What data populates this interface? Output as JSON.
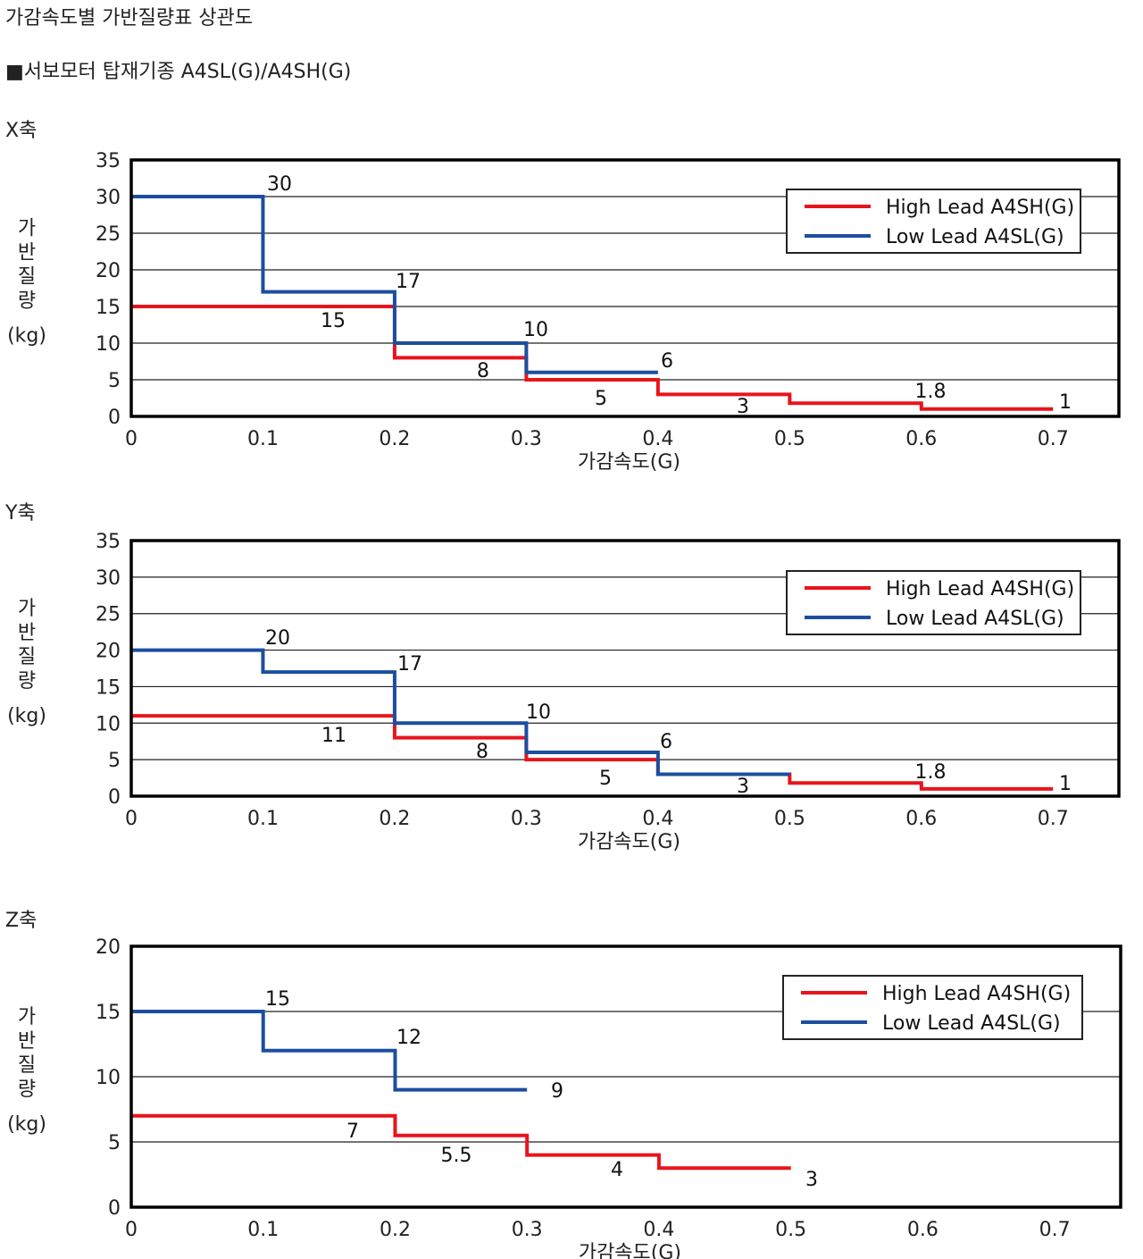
{
  "page": {
    "title": "가감속도별 가반질량표 상관도",
    "model_line": "■서보모터 탑재기종 A4SL(G)/A4SH(G)"
  },
  "colors": {
    "high": "#e8141c",
    "low": "#1c4ea0",
    "grid": "#222222",
    "frame": "#000000"
  },
  "chart_data": [
    {
      "type": "line",
      "panel_title": "X축",
      "xlabel": "가감속도(G)",
      "ylabel": "가반질량(kg)",
      "xlim": [
        0,
        0.75
      ],
      "ylim": [
        0,
        35
      ],
      "xticks": [
        0,
        0.1,
        0.2,
        0.3,
        0.4,
        0.5,
        0.6,
        0.7
      ],
      "yticks": [
        0,
        5,
        10,
        15,
        20,
        25,
        30,
        35
      ],
      "grid": true,
      "legend": "top-right",
      "series": [
        {
          "name": "High Lead A4SH(G)",
          "color": "#e8141c",
          "steps": [
            {
              "x": [
                0,
                0.2
              ],
              "y": 15,
              "label": "15"
            },
            {
              "x": [
                0.2,
                0.3
              ],
              "y": 8,
              "label": "8"
            },
            {
              "x": [
                0.3,
                0.4
              ],
              "y": 5,
              "label": "5"
            },
            {
              "x": [
                0.4,
                0.5
              ],
              "y": 3,
              "label": "3"
            },
            {
              "x": [
                0.5,
                0.6
              ],
              "y": 1.8,
              "label": "1.8"
            },
            {
              "x": [
                0.6,
                0.7
              ],
              "y": 1,
              "label": "1"
            }
          ]
        },
        {
          "name": "Low Lead A4SL(G)",
          "color": "#1c4ea0",
          "steps": [
            {
              "x": [
                0,
                0.1
              ],
              "y": 30,
              "label": "30"
            },
            {
              "x": [
                0.1,
                0.2
              ],
              "y": 17,
              "label": "17"
            },
            {
              "x": [
                0.2,
                0.3
              ],
              "y": 10,
              "label": "10"
            },
            {
              "x": [
                0.3,
                0.4
              ],
              "y": 6,
              "label": "6"
            }
          ]
        }
      ]
    },
    {
      "type": "line",
      "panel_title": "Y축",
      "xlabel": "가감속도(G)",
      "ylabel": "가반질량(kg)",
      "xlim": [
        0,
        0.75
      ],
      "ylim": [
        0,
        35
      ],
      "xticks": [
        0,
        0.1,
        0.2,
        0.3,
        0.4,
        0.5,
        0.6,
        0.7
      ],
      "yticks": [
        0,
        5,
        10,
        15,
        20,
        25,
        30,
        35
      ],
      "grid": true,
      "legend": "top-right",
      "series": [
        {
          "name": "High Lead A4SH(G)",
          "color": "#e8141c",
          "steps": [
            {
              "x": [
                0,
                0.2
              ],
              "y": 11,
              "label": "11"
            },
            {
              "x": [
                0.2,
                0.3
              ],
              "y": 8,
              "label": "8"
            },
            {
              "x": [
                0.3,
                0.4
              ],
              "y": 5,
              "label": "5"
            },
            {
              "x": [
                0.4,
                0.5
              ],
              "y": 3,
              "label": "3"
            },
            {
              "x": [
                0.5,
                0.6
              ],
              "y": 1.8,
              "label": "1.8"
            },
            {
              "x": [
                0.6,
                0.7
              ],
              "y": 1,
              "label": "1"
            }
          ]
        },
        {
          "name": "Low Lead A4SL(G)",
          "color": "#1c4ea0",
          "steps": [
            {
              "x": [
                0,
                0.1
              ],
              "y": 20,
              "label": "20"
            },
            {
              "x": [
                0.1,
                0.2
              ],
              "y": 17,
              "label": "17"
            },
            {
              "x": [
                0.2,
                0.3
              ],
              "y": 10,
              "label": "10"
            },
            {
              "x": [
                0.3,
                0.4
              ],
              "y": 6,
              "label": "6"
            },
            {
              "x": [
                0.4,
                0.5
              ],
              "y": 3,
              "label": ""
            }
          ]
        }
      ]
    },
    {
      "type": "line",
      "panel_title": "Z축",
      "xlabel": "가감속도(G)",
      "ylabel": "가반질량(kg)",
      "xlim": [
        0,
        0.75
      ],
      "ylim": [
        0,
        20
      ],
      "xticks": [
        0,
        0.1,
        0.2,
        0.3,
        0.4,
        0.5,
        0.6,
        0.7
      ],
      "yticks": [
        0,
        5,
        10,
        15,
        20
      ],
      "grid": true,
      "legend": "top-right",
      "series": [
        {
          "name": "High Lead A4SH(G)",
          "color": "#e8141c",
          "steps": [
            {
              "x": [
                0,
                0.2
              ],
              "y": 7,
              "label": "7"
            },
            {
              "x": [
                0.2,
                0.3
              ],
              "y": 5.5,
              "label": "5.5"
            },
            {
              "x": [
                0.3,
                0.4
              ],
              "y": 4,
              "label": "4"
            },
            {
              "x": [
                0.4,
                0.5
              ],
              "y": 3,
              "label": "3"
            }
          ]
        },
        {
          "name": "Low Lead A4SL(G)",
          "color": "#1c4ea0",
          "steps": [
            {
              "x": [
                0,
                0.1
              ],
              "y": 15,
              "label": "15"
            },
            {
              "x": [
                0.1,
                0.2
              ],
              "y": 12,
              "label": "12"
            },
            {
              "x": [
                0.2,
                0.3
              ],
              "y": 9,
              "label": "9"
            }
          ]
        }
      ]
    }
  ]
}
